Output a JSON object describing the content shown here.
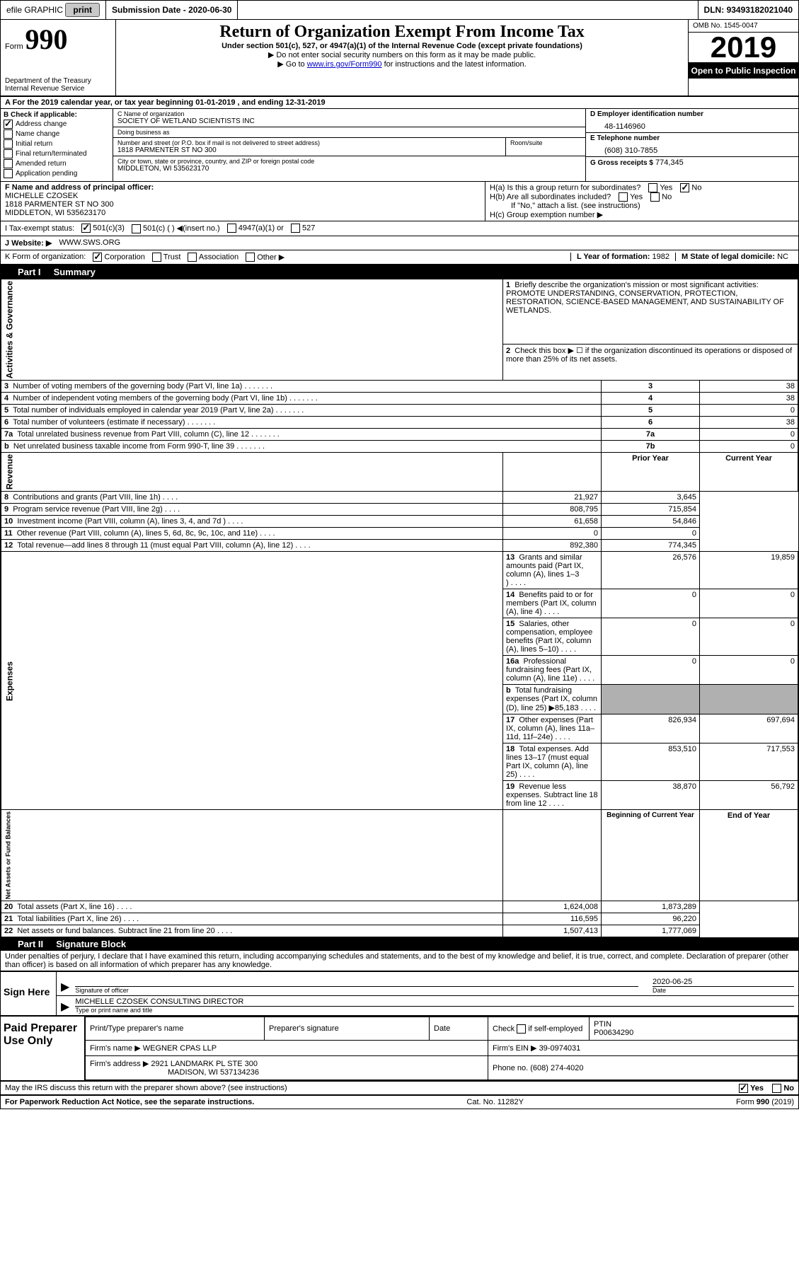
{
  "topbar": {
    "efile": "efile GRAPHIC",
    "print": "print",
    "sub_label": "Submission Date -",
    "sub_date": "2020-06-30",
    "dln_label": "DLN:",
    "dln": "93493182021040"
  },
  "header": {
    "form_word": "Form",
    "form_num": "990",
    "dept": "Department of the Treasury",
    "irs": "Internal Revenue Service",
    "title": "Return of Organization Exempt From Income Tax",
    "subtitle": "Under section 501(c), 527, or 4947(a)(1) of the Internal Revenue Code (except private foundations)",
    "line1": "▶ Do not enter social security numbers on this form as it may be made public.",
    "line2_pre": "▶ Go to ",
    "line2_link": "www.irs.gov/Form990",
    "line2_post": " for instructions and the latest information.",
    "omb": "OMB No. 1545-0047",
    "year": "2019",
    "open": "Open to Public Inspection"
  },
  "rowA": {
    "text": "A For the 2019 calendar year, or tax year beginning 01-01-2019      , and ending 12-31-2019"
  },
  "colB": {
    "title": "B Check if applicable:",
    "items": [
      {
        "label": "Address change",
        "checked": true
      },
      {
        "label": "Name change",
        "checked": false
      },
      {
        "label": "Initial return",
        "checked": false
      },
      {
        "label": "Final return/terminated",
        "checked": false
      },
      {
        "label": "Amended return",
        "checked": false
      },
      {
        "label": "Application pending",
        "checked": false
      }
    ]
  },
  "colC": {
    "name_label": "C Name of organization",
    "name": "SOCIETY OF WETLAND SCIENTISTS INC",
    "dba_label": "Doing business as",
    "dba": "",
    "addr_label": "Number and street (or P.O. box if mail is not delivered to street address)",
    "addr": "1818 PARMENTER ST NO 300",
    "room_label": "Room/suite",
    "room": "",
    "city_label": "City or town, state or province, country, and ZIP or foreign postal code",
    "city": "MIDDLETON, WI  535623170"
  },
  "colD": {
    "ein_label": "D Employer identification number",
    "ein": "48-1146960",
    "phone_label": "E Telephone number",
    "phone": "(608) 310-7855",
    "gross_label": "G Gross receipts $",
    "gross": "774,345"
  },
  "rowF": {
    "label": "F  Name and address of principal officer:",
    "name": "MICHELLE CZOSEK",
    "addr1": "1818 PARMENTER ST NO 300",
    "addr2": "MIDDLETON, WI  535623170"
  },
  "rowH": {
    "ha": "H(a)  Is this a group return for subordinates?",
    "ha_yes": "Yes",
    "ha_no": "No",
    "ha_checked": "No",
    "hb": "H(b)  Are all subordinates included?",
    "hb_yes": "Yes",
    "hb_no": "No",
    "hb_note": "If \"No,\" attach a list. (see instructions)",
    "hc": "H(c)  Group exemption number ▶"
  },
  "status": {
    "label": "I    Tax-exempt status:",
    "c3": "501(c)(3)",
    "c": "501(c) (  ) ◀(insert no.)",
    "a1": "4947(a)(1) or",
    "s527": "527",
    "checked": "c3"
  },
  "website": {
    "label": "J   Website: ▶",
    "value": "WWW.SWS.ORG"
  },
  "korg": {
    "label": "K Form of organization:",
    "opts": [
      "Corporation",
      "Trust",
      "Association",
      "Other ▶"
    ],
    "checked": "Corporation",
    "l_label": "L Year of formation:",
    "l_val": "1982",
    "m_label": "M State of legal domicile:",
    "m_val": "NC"
  },
  "part1": {
    "label": "Part I",
    "title": "Summary"
  },
  "q1": {
    "num": "1",
    "text": "Briefly describe the organization's mission or most significant activities:",
    "answer": "PROMOTE UNDERSTANDING, CONSERVATION, PROTECTION, RESTORATION, SCIENCE-BASED MANAGEMENT, AND SUSTAINABILITY OF WETLANDS."
  },
  "governance": {
    "side": "Activities & Governance",
    "rows": [
      {
        "n": "2",
        "t": "Check this box ▶ ☐  if the organization discontinued its operations or disposed of more than 25% of its net assets.",
        "box": "",
        "val": ""
      },
      {
        "n": "3",
        "t": "Number of voting members of the governing body (Part VI, line 1a)",
        "box": "3",
        "val": "38"
      },
      {
        "n": "4",
        "t": "Number of independent voting members of the governing body (Part VI, line 1b)",
        "box": "4",
        "val": "38"
      },
      {
        "n": "5",
        "t": "Total number of individuals employed in calendar year 2019 (Part V, line 2a)",
        "box": "5",
        "val": "0"
      },
      {
        "n": "6",
        "t": "Total number of volunteers (estimate if necessary)",
        "box": "6",
        "val": "38"
      },
      {
        "n": "7a",
        "t": "Total unrelated business revenue from Part VIII, column (C), line 12",
        "box": "7a",
        "val": "0"
      },
      {
        "n": "b",
        "t": "Net unrelated business taxable income from Form 990-T, line 39",
        "box": "7b",
        "val": "0"
      }
    ]
  },
  "revenue": {
    "side": "Revenue",
    "header_prior": "Prior Year",
    "header_current": "Current Year",
    "rows": [
      {
        "n": "8",
        "t": "Contributions and grants (Part VIII, line 1h)",
        "prior": "21,927",
        "curr": "3,645"
      },
      {
        "n": "9",
        "t": "Program service revenue (Part VIII, line 2g)",
        "prior": "808,795",
        "curr": "715,854"
      },
      {
        "n": "10",
        "t": "Investment income (Part VIII, column (A), lines 3, 4, and 7d )",
        "prior": "61,658",
        "curr": "54,846"
      },
      {
        "n": "11",
        "t": "Other revenue (Part VIII, column (A), lines 5, 6d, 8c, 9c, 10c, and 11e)",
        "prior": "0",
        "curr": "0"
      },
      {
        "n": "12",
        "t": "Total revenue—add lines 8 through 11 (must equal Part VIII, column (A), line 12)",
        "prior": "892,380",
        "curr": "774,345"
      }
    ]
  },
  "expenses": {
    "side": "Expenses",
    "rows": [
      {
        "n": "13",
        "t": "Grants and similar amounts paid (Part IX, column (A), lines 1–3 )",
        "prior": "26,576",
        "curr": "19,859"
      },
      {
        "n": "14",
        "t": "Benefits paid to or for members (Part IX, column (A), line 4)",
        "prior": "0",
        "curr": "0"
      },
      {
        "n": "15",
        "t": "Salaries, other compensation, employee benefits (Part IX, column (A), lines 5–10)",
        "prior": "0",
        "curr": "0"
      },
      {
        "n": "16a",
        "t": "Professional fundraising fees (Part IX, column (A), line 11e)",
        "prior": "0",
        "curr": "0"
      },
      {
        "n": "b",
        "t": "Total fundraising expenses (Part IX, column (D), line 25) ▶85,183",
        "prior": "",
        "curr": "",
        "shaded": true
      },
      {
        "n": "17",
        "t": "Other expenses (Part IX, column (A), lines 11a–11d, 11f–24e)",
        "prior": "826,934",
        "curr": "697,694"
      },
      {
        "n": "18",
        "t": "Total expenses. Add lines 13–17 (must equal Part IX, column (A), line 25)",
        "prior": "853,510",
        "curr": "717,553"
      },
      {
        "n": "19",
        "t": "Revenue less expenses. Subtract line 18 from line 12",
        "prior": "38,870",
        "curr": "56,792"
      }
    ]
  },
  "netassets": {
    "side": "Net Assets or Fund Balances",
    "header_begin": "Beginning of Current Year",
    "header_end": "End of Year",
    "rows": [
      {
        "n": "20",
        "t": "Total assets (Part X, line 16)",
        "begin": "1,624,008",
        "end": "1,873,289"
      },
      {
        "n": "21",
        "t": "Total liabilities (Part X, line 26)",
        "begin": "116,595",
        "end": "96,220"
      },
      {
        "n": "22",
        "t": "Net assets or fund balances. Subtract line 21 from line 20",
        "begin": "1,507,413",
        "end": "1,777,069"
      }
    ]
  },
  "part2": {
    "label": "Part II",
    "title": "Signature Block"
  },
  "penalty": "Under penalties of perjury, I declare that I have examined this return, including accompanying schedules and statements, and to the best of my knowledge and belief, it is true, correct, and complete. Declaration of preparer (other than officer) is based on all information of which preparer has any knowledge.",
  "sign": {
    "left": "Sign Here",
    "sig_label": "Signature of officer",
    "date_label": "Date",
    "date": "2020-06-25",
    "name": "MICHELLE CZOSEK CONSULTING DIRECTOR",
    "name_label": "Type or print name and title"
  },
  "prep": {
    "left": "Paid Preparer Use Only",
    "h1": "Print/Type preparer's name",
    "h2": "Preparer's signature",
    "h3": "Date",
    "h4_pre": "Check",
    "h4_post": "if self-employed",
    "h5": "PTIN",
    "ptin": "P00634290",
    "firm_label": "Firm's name      ▶",
    "firm": "WEGNER CPAS LLP",
    "ein_label": "Firm's EIN ▶",
    "ein": "39-0974031",
    "addr_label": "Firm's address ▶",
    "addr1": "2921 LANDMARK PL STE 300",
    "addr2": "MADISON, WI  537134236",
    "phone_label": "Phone no.",
    "phone": "(608) 274-4020"
  },
  "discuss": {
    "text": "May the IRS discuss this return with the preparer shown above? (see instructions)",
    "yes": "Yes",
    "no": "No",
    "checked": "Yes"
  },
  "footer": {
    "left": "For Paperwork Reduction Act Notice, see the separate instructions.",
    "center": "Cat. No. 11282Y",
    "right_pre": "Form ",
    "right_bold": "990",
    "right_post": " (2019)"
  },
  "colors": {
    "link": "#0000cc",
    "shaded": "#b0b0b0",
    "btn": "#c8c8c8"
  }
}
